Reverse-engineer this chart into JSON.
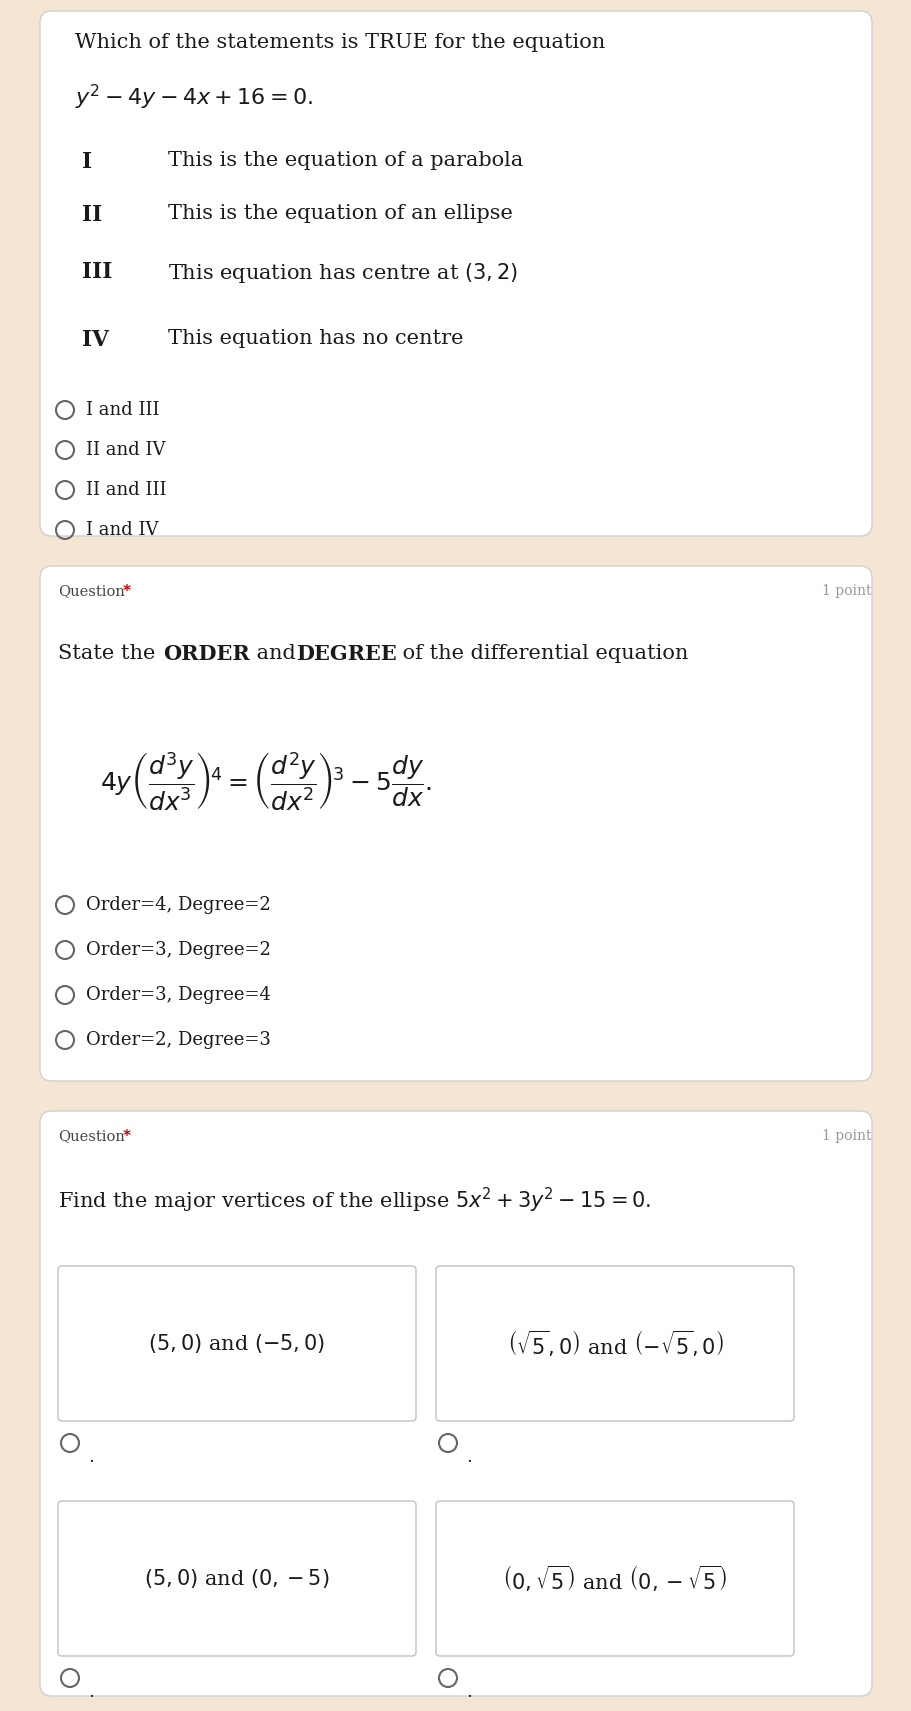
{
  "bg_color": "#f5e6d3",
  "card_color": "#ffffff",
  "text_color": "#1a1a1a",
  "q_label_color": "#444444",
  "star_color": "#cc0000",
  "point_color": "#999999",
  "q1_title": "Which of the statements is TRUE for the equation",
  "q1_equation": "$y^2-4y-4x+16=0.$",
  "q1_statements": [
    [
      "I",
      "This is the equation of a parabola"
    ],
    [
      "II",
      "This is the equation of an ellipse"
    ],
    [
      "III",
      "This equation has centre at $\\left(3,2\\right)$"
    ],
    [
      "IV",
      "This equation has no centre"
    ]
  ],
  "q1_options": [
    "I and III",
    "II and IV",
    "II and III",
    "I and IV"
  ],
  "q2_options": [
    "Order=4, Degree=2",
    "Order=3, Degree=2",
    "Order=3, Degree=4",
    "Order=2, Degree=3"
  ],
  "q3_box_tl": "$(5,0)$ and $(-5,0)$",
  "q3_box_tr": "$\\left(\\sqrt{5},0\\right)$ and $\\left(-\\sqrt{5},0\\right)$",
  "q3_box_bl": "$(5,0)$ and $(0,-5)$",
  "q3_box_br": "$\\left(0,\\sqrt{5}\\right)$ and $\\left(0,-\\sqrt{5}\\right)$",
  "fig_width": 9.12,
  "fig_height": 17.11,
  "dpi": 100
}
